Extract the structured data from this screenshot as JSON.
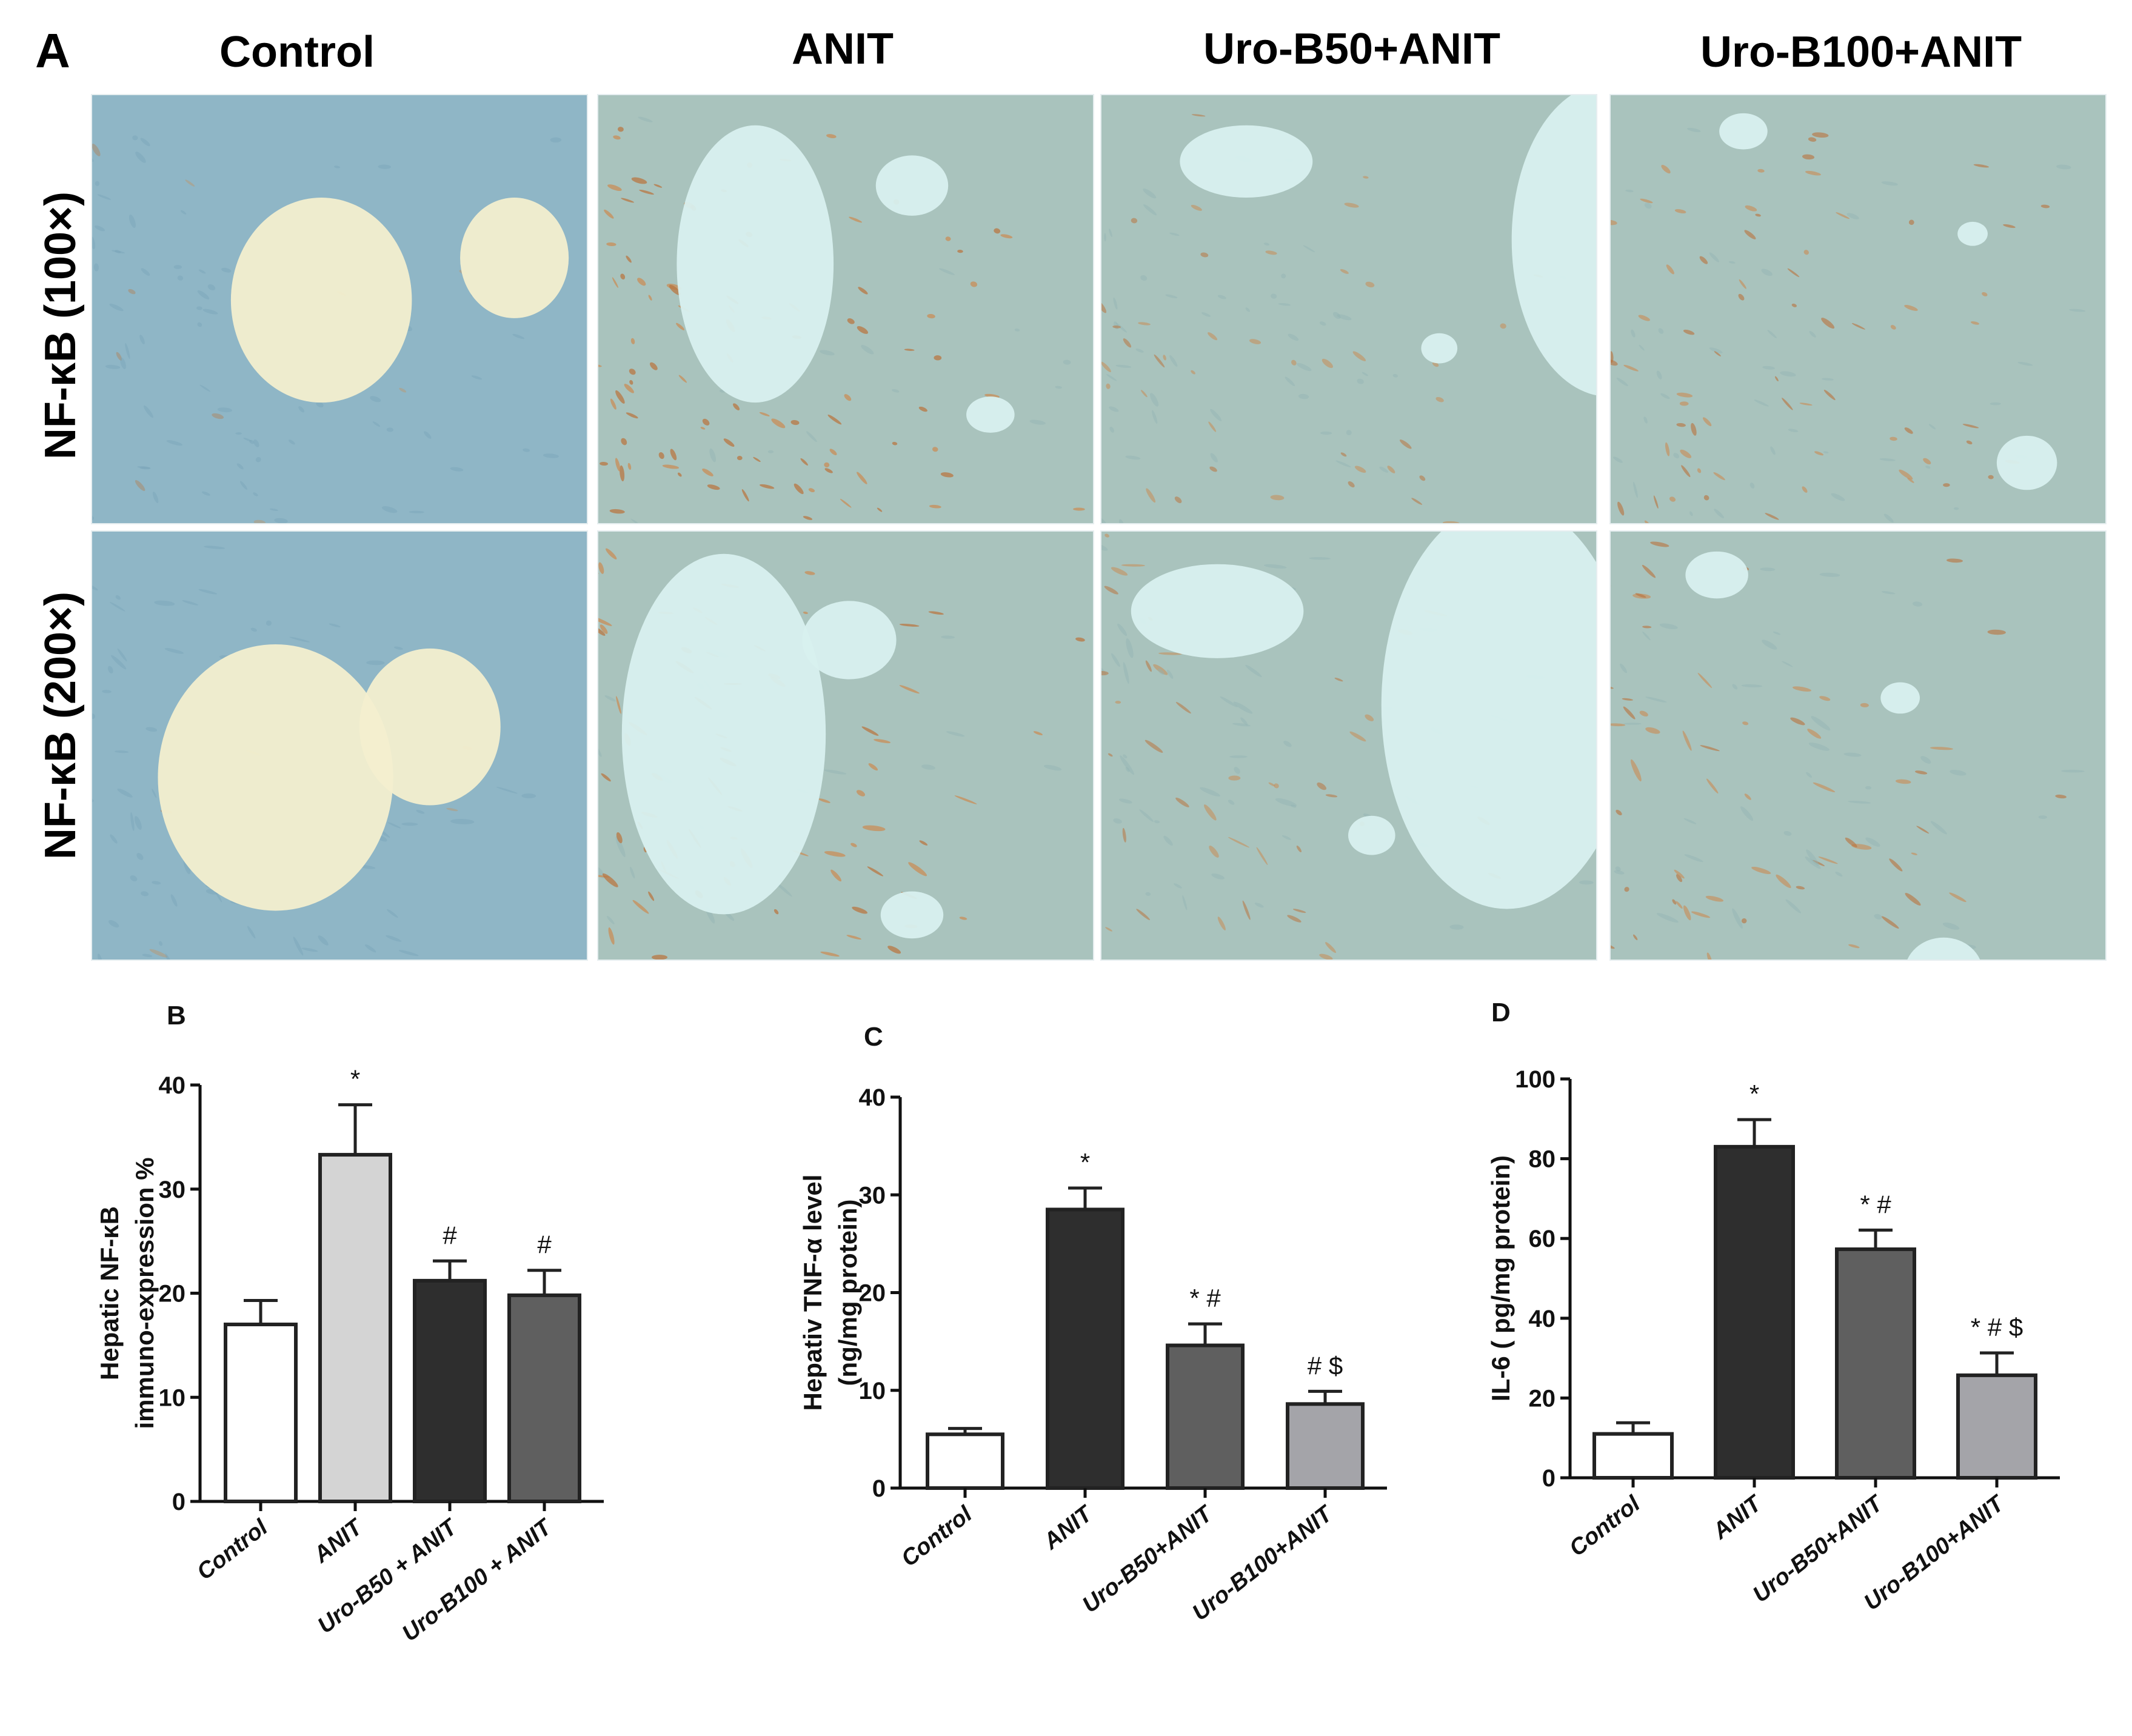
{
  "figure": {
    "panel_a_letter": "A",
    "columns": [
      "Control",
      "ANIT",
      "Uro-B50+ANIT",
      "Uro-B100+ANIT"
    ],
    "rows": [
      "NF-κB (100×)",
      "NF-κB (200×)"
    ]
  },
  "chart_data": [
    {
      "panel": "B",
      "type": "bar",
      "categories": [
        "Control",
        "ANIT",
        "Uro-B50 + ANIT",
        "Uro-B100 + ANIT"
      ],
      "values": [
        17,
        33.3,
        21.2,
        19.8
      ],
      "errors": [
        2.3,
        4.8,
        1.9,
        2.4
      ],
      "annotations": [
        "",
        "*",
        "#",
        "#"
      ],
      "bar_colors": [
        "#ffffff",
        "#d4d4d4",
        "#2e2e2e",
        "#5f5f5f"
      ],
      "ylabel_line1": "Hepatic NF-κB",
      "ylabel_line2": "immuno-expression %",
      "ylim": [
        0,
        40
      ],
      "yticks": [
        "0",
        "10",
        "20",
        "30",
        "40"
      ]
    },
    {
      "panel": "C",
      "type": "bar",
      "categories": [
        "Control",
        "ANIT",
        "Uro-B50+ANIT",
        "Uro-B100+ANIT"
      ],
      "values": [
        5.5,
        28.5,
        14.6,
        8.6
      ],
      "errors": [
        0.6,
        2.2,
        2.2,
        1.3
      ],
      "annotations": [
        "",
        "*",
        "* #",
        "# $"
      ],
      "bar_colors": [
        "#ffffff",
        "#2e2e2e",
        "#5f5f5f",
        "#a4a4a9"
      ],
      "ylabel_line1": "Hepativ TNF-α level",
      "ylabel_line2": "(ng/mg protein)",
      "ylim": [
        0,
        40
      ],
      "yticks": [
        "0",
        "10",
        "20",
        "30",
        "40"
      ]
    },
    {
      "panel": "D",
      "type": "bar",
      "categories": [
        "Control",
        "ANIT",
        "Uro-B50+ANIT",
        "Uro-B100+ANIT"
      ],
      "values": [
        11,
        83,
        57.3,
        25.7
      ],
      "errors": [
        2.8,
        6.8,
        4.8,
        5.6
      ],
      "annotations": [
        "",
        "*",
        "* #",
        "* # $"
      ],
      "bar_colors": [
        "#ffffff",
        "#2e2e2e",
        "#5f5f5f",
        "#a4a4a9"
      ],
      "ylabel_line1": "IL-6 ( pg/mg protein)",
      "ylabel_line2": "",
      "ylim": [
        0,
        100
      ],
      "yticks": [
        "0",
        "20",
        "40",
        "60",
        "80",
        "100"
      ]
    }
  ]
}
